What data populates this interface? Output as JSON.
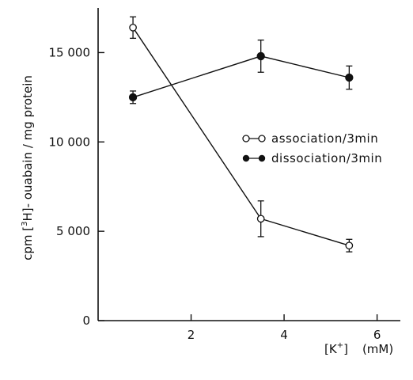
{
  "chart_data": {
    "type": "line",
    "title": "",
    "xlabel": "[K⁺]   (mM)",
    "ylabel": "cpm [3H]- ouabain / mg protein",
    "ylabel_parts": {
      "pre": "cpm [",
      "sup": "3",
      "mid": "H]- ouabain / mg protein"
    },
    "xlabel_parts": {
      "bracket": "[K",
      "sup": "+",
      "close": "]",
      "unit": "(mM)"
    },
    "xlim": [
      0,
      6.5
    ],
    "ylim": [
      0,
      17500
    ],
    "x_ticks": [
      2,
      4,
      6
    ],
    "x_tick_labels": [
      "2",
      "4",
      "6"
    ],
    "y_ticks": [
      0,
      5000,
      10000,
      15000
    ],
    "y_tick_labels": [
      "0",
      "5 000",
      "10 000",
      "15 000"
    ],
    "grid": false,
    "legend_position": "middle-right",
    "series": [
      {
        "name": "association/3min",
        "marker": "open-circle",
        "x": [
          0.75,
          3.5,
          5.4
        ],
        "y": [
          16400,
          5700,
          4200
        ],
        "err": [
          600,
          1000,
          350
        ]
      },
      {
        "name": "dissociation/3min",
        "marker": "filled-circle",
        "x": [
          0.75,
          3.5,
          5.4
        ],
        "y": [
          12500,
          14800,
          13600
        ],
        "err": [
          350,
          900,
          650
        ]
      }
    ]
  }
}
